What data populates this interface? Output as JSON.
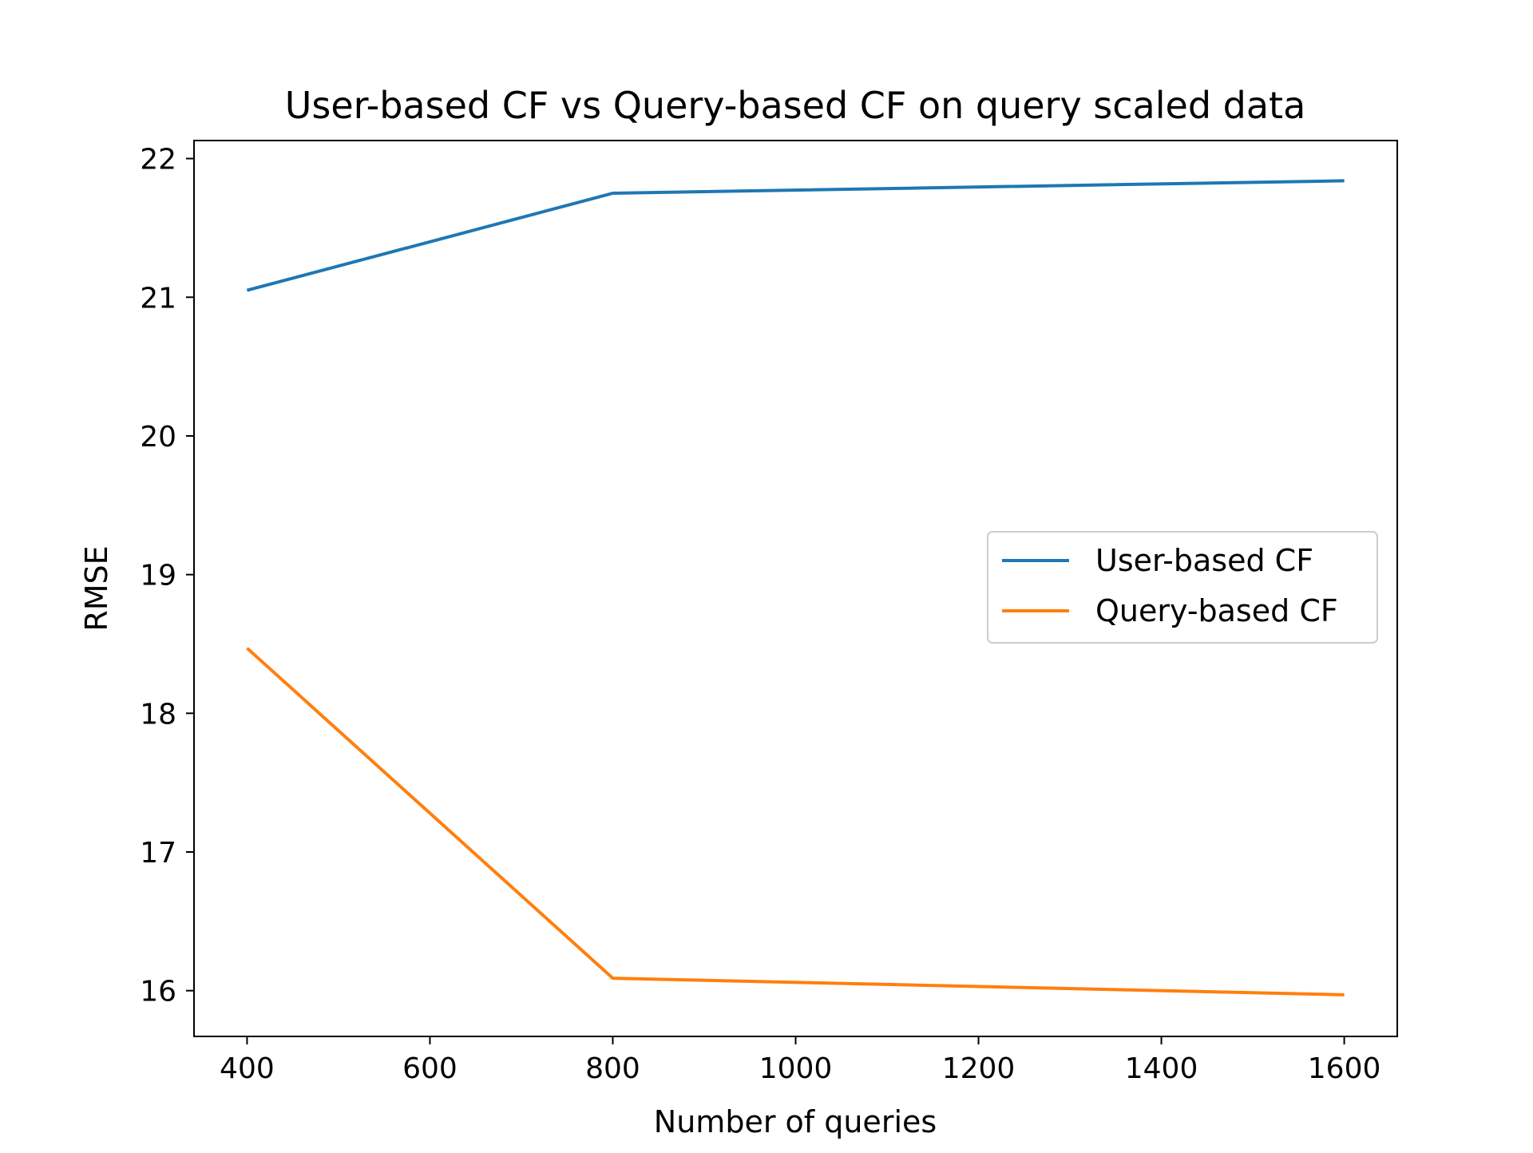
{
  "chart_data": {
    "type": "line",
    "title": "User-based CF vs Query-based CF on query scaled data",
    "xlabel": "Number of queries",
    "ylabel": "RMSE",
    "x": [
      400,
      800,
      1600
    ],
    "series": [
      {
        "name": "User-based CF",
        "color": "#1f77b4",
        "values": [
          21.05,
          21.75,
          21.84
        ]
      },
      {
        "name": "Query-based CF",
        "color": "#ff7f0e",
        "values": [
          18.47,
          16.09,
          15.97
        ]
      }
    ],
    "xlim": [
      342,
      1658
    ],
    "ylim": [
      15.67,
      22.13
    ],
    "xticks": [
      400,
      600,
      800,
      1000,
      1200,
      1400,
      1600
    ],
    "yticks": [
      16,
      17,
      18,
      19,
      20,
      21,
      22
    ],
    "grid": false,
    "legend_position": "center-right"
  }
}
